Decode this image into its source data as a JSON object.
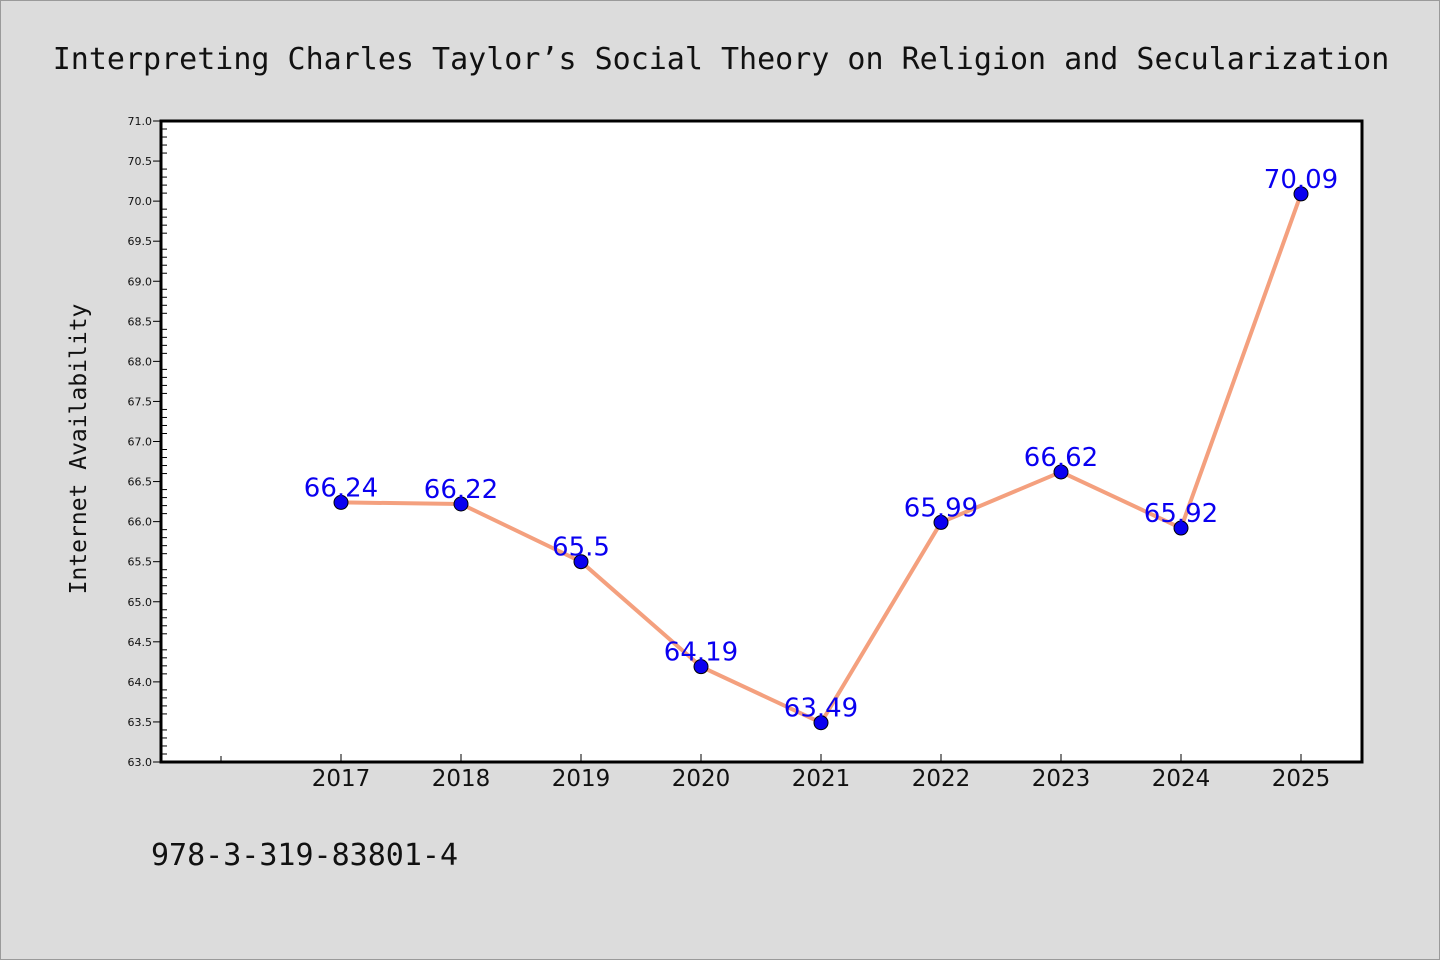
{
  "chart_data": {
    "type": "line",
    "title": "Interpreting Charles Taylor’s Social Theory on Religion and Secularization",
    "xlabel": "",
    "ylabel": "Internet Availability",
    "categories": [
      "2017",
      "2018",
      "2019",
      "2020",
      "2021",
      "2022",
      "2023",
      "2024",
      "2025"
    ],
    "series": [
      {
        "values": [
          66.24,
          66.22,
          65.5,
          64.19,
          63.49,
          65.99,
          66.62,
          65.92,
          70.09
        ],
        "value_labels": [
          "66.24",
          "66.22",
          "65.5",
          "64.19",
          "63.49",
          "65.99",
          "66.62",
          "65.92",
          "70.09"
        ]
      }
    ],
    "ylim": [
      63.0,
      71.0
    ],
    "yticks": [
      "63.0",
      "63.5",
      "64.0",
      "64.5",
      "65.0",
      "65.5",
      "66.0",
      "66.5",
      "67.0",
      "67.5",
      "68.0",
      "68.5",
      "69.0",
      "69.5",
      "70.0",
      "70.5",
      "71.0"
    ],
    "grid": false,
    "legend": "none",
    "colors": {
      "line": "#f4a07e",
      "marker": "#0a00f0",
      "labels": "#0a00f0",
      "plot_background": "#ffffff",
      "figure_background": "#dcdcdc"
    }
  },
  "footer": {
    "isbn": "978-3-319-83801-4"
  }
}
